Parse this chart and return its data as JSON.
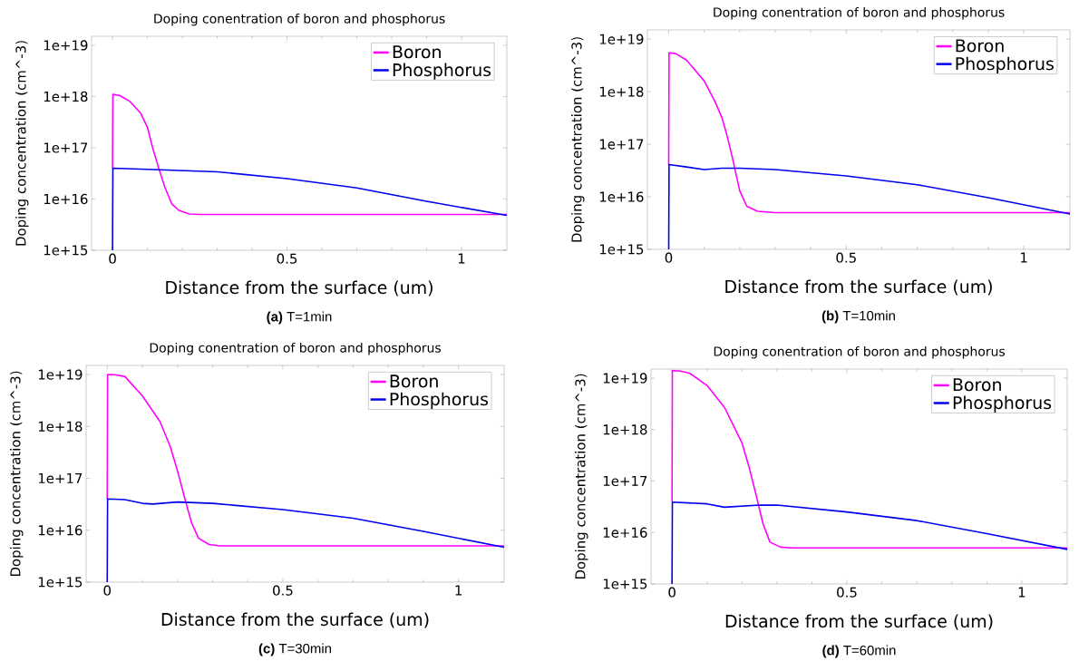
{
  "chart_data": [
    {
      "type": "line",
      "title": "Doping conentration of boron and phosphorus",
      "xlabel": "Distance from the surface (um)",
      "ylabel": "Doping concentration  (cm^-3)",
      "annotations": [
        "**(a)** T=1min"
      ],
      "log": "y",
      "legend": "top right",
      "xlim": [
        -0.06,
        1.13
      ],
      "ylim": [
        1000000000000000.0,
        1.5e+19
      ],
      "xticks": [
        0,
        0.5,
        1
      ],
      "yticks": [
        {
          "value": 1000000000000000.0,
          "label": "1e+15"
        },
        {
          "value": 1e+16,
          "label": "1e+16"
        },
        {
          "value": 1e+17,
          "label": "1e+17"
        },
        {
          "value": 1e+18,
          "label": "1e+18"
        },
        {
          "value": 1e+19,
          "label": "1e+19"
        }
      ],
      "series": [
        {
          "name": "Boron",
          "color": "#ff00ff",
          "x": [
            0,
            0.001,
            0.02,
            0.05,
            0.08,
            0.1,
            0.115,
            0.134,
            0.15,
            0.17,
            0.19,
            0.22,
            0.25,
            0.5,
            1.13
          ],
          "values": [
            4e+16,
            1.1e+18,
            1.05e+18,
            8e+17,
            4.8e+17,
            2.5e+17,
            1e+17,
            3.7e+16,
            1.7e+16,
            8000000000000000.0,
            6000000000000000.0,
            5100000000000000.0,
            5000000000000000.0,
            5000000000000000.0,
            5000000000000000.0
          ]
        },
        {
          "name": "Phosphorus",
          "color": "#0000ee",
          "x": [
            0,
            0.001,
            0.1,
            0.3,
            0.5,
            0.7,
            0.9,
            1.13
          ],
          "values": [
            1000000000000000.0,
            4e+16,
            3.8e+16,
            3.4e+16,
            2.5e+16,
            1.65e+16,
            9000000000000000.0,
            4800000000000000.0
          ]
        }
      ]
    },
    {
      "type": "line",
      "title": "Doping conentration of boron and phosphorus",
      "xlabel": "Distance from the surface (um)",
      "ylabel": "Doping concentration  (cm^-3)",
      "annotations": [
        "**(b)** T=10min"
      ],
      "log": "y",
      "legend": "top right",
      "xlim": [
        -0.06,
        1.13
      ],
      "ylim": [
        1000000000000000.0,
        1.5e+19
      ],
      "xticks": [
        0,
        0.5,
        1
      ],
      "yticks": [
        {
          "value": 1000000000000000.0,
          "label": "1e+15"
        },
        {
          "value": 1e+16,
          "label": "1e+16"
        },
        {
          "value": 1e+17,
          "label": "1e+17"
        },
        {
          "value": 1e+18,
          "label": "1e+18"
        },
        {
          "value": 1e+19,
          "label": "1e+19"
        }
      ],
      "series": [
        {
          "name": "Boron",
          "color": "#ff00ff",
          "x": [
            0,
            0.001,
            0.02,
            0.05,
            0.1,
            0.13,
            0.15,
            0.165,
            0.18,
            0.2,
            0.22,
            0.25,
            0.3,
            0.6,
            1.13
          ],
          "values": [
            4e+16,
            5.5e+18,
            5.3e+18,
            4e+18,
            1.6e+18,
            6.6e+17,
            3.2e+17,
            1.4e+17,
            5.3e+16,
            1.3e+16,
            6600000000000000.0,
            5300000000000000.0,
            5000000000000000.0,
            5000000000000000.0,
            5000000000000000.0
          ]
        },
        {
          "name": "Phosphorus",
          "color": "#0000ee",
          "x": [
            0,
            0.001,
            0.05,
            0.1,
            0.15,
            0.2,
            0.3,
            0.5,
            0.7,
            0.9,
            1.13
          ],
          "values": [
            1000000000000000.0,
            4.1e+16,
            3.7e+16,
            3.3e+16,
            3.5e+16,
            3.5e+16,
            3.3e+16,
            2.5e+16,
            1.7e+16,
            9600000000000000.0,
            4700000000000000.0
          ]
        }
      ]
    },
    {
      "type": "line",
      "title": "Doping conentration of boron and phosphorus",
      "xlabel": "Distance from the surface (um)",
      "ylabel": "Doping concentration  (cm^-3)",
      "annotations": [
        "**(c)** T=30min"
      ],
      "log": "y",
      "legend": "top right",
      "xlim": [
        -0.06,
        1.13
      ],
      "ylim": [
        1000000000000000.0,
        1.5e+19
      ],
      "xticks": [
        0,
        0.5,
        1
      ],
      "yticks": [
        {
          "value": 1000000000000000.0,
          "label": "1e+15"
        },
        {
          "value": 1e+16,
          "label": "1e+16"
        },
        {
          "value": 1e+17,
          "label": "1e+17"
        },
        {
          "value": 1e+18,
          "label": "1e+18"
        },
        {
          "value": 1e+19,
          "label": "1e+19"
        }
      ],
      "series": [
        {
          "name": "Boron",
          "color": "#ff00ff",
          "x": [
            0,
            0.001,
            0.02,
            0.05,
            0.1,
            0.15,
            0.18,
            0.2,
            0.22,
            0.24,
            0.26,
            0.29,
            0.32,
            0.6,
            1.13
          ],
          "values": [
            4e+16,
            1e+19,
            9.9e+18,
            9.2e+18,
            3.9e+18,
            1.25e+18,
            4e+17,
            1.4e+17,
            4.3e+16,
            1.4e+16,
            7000000000000000.0,
            5300000000000000.0,
            5000000000000000.0,
            5000000000000000.0,
            5000000000000000.0
          ]
        },
        {
          "name": "Phosphorus",
          "color": "#0000ee",
          "x": [
            0,
            0.001,
            0.05,
            0.1,
            0.13,
            0.2,
            0.3,
            0.5,
            0.7,
            0.9,
            1.13
          ],
          "values": [
            1000000000000000.0,
            4e+16,
            3.9e+16,
            3.3e+16,
            3.2e+16,
            3.5e+16,
            3.3e+16,
            2.5e+16,
            1.7e+16,
            9500000000000000.0,
            4700000000000000.0
          ]
        }
      ]
    },
    {
      "type": "line",
      "title": "Doping conentration of boron and phosphorus",
      "xlabel": "Distance from the surface (um)",
      "ylabel": "Doping concentration  (cm^-3)",
      "annotations": [
        "**(d)** T=60min"
      ],
      "log": "y",
      "legend": "top right",
      "xlim": [
        -0.06,
        1.13
      ],
      "ylim": [
        1000000000000000.0,
        1.5e+19
      ],
      "xticks": [
        0,
        0.5,
        1
      ],
      "yticks": [
        {
          "value": 1000000000000000.0,
          "label": "1e+15"
        },
        {
          "value": 1e+16,
          "label": "1e+16"
        },
        {
          "value": 1e+17,
          "label": "1e+17"
        },
        {
          "value": 1e+18,
          "label": "1e+18"
        },
        {
          "value": 1e+19,
          "label": "1e+19"
        }
      ],
      "series": [
        {
          "name": "Boron",
          "color": "#ff00ff",
          "x": [
            0,
            0.001,
            0.02,
            0.05,
            0.1,
            0.15,
            0.2,
            0.22,
            0.24,
            0.26,
            0.28,
            0.31,
            0.34,
            0.6,
            1.13
          ],
          "values": [
            4e+16,
            1.4e+19,
            1.38e+19,
            1.25e+19,
            7.2e+18,
            2.7e+18,
            5.5e+17,
            1.9e+17,
            5.5e+16,
            1.5e+16,
            6500000000000000.0,
            5200000000000000.0,
            5000000000000000.0,
            5000000000000000.0,
            5000000000000000.0
          ]
        },
        {
          "name": "Phosphorus",
          "color": "#0000ee",
          "x": [
            0,
            0.001,
            0.1,
            0.15,
            0.25,
            0.3,
            0.5,
            0.7,
            0.9,
            1.13
          ],
          "values": [
            1000000000000000.0,
            3.9e+16,
            3.6e+16,
            3.1e+16,
            3.4e+16,
            3.4e+16,
            2.5e+16,
            1.7e+16,
            9500000000000000.0,
            4700000000000000.0
          ]
        }
      ]
    }
  ]
}
